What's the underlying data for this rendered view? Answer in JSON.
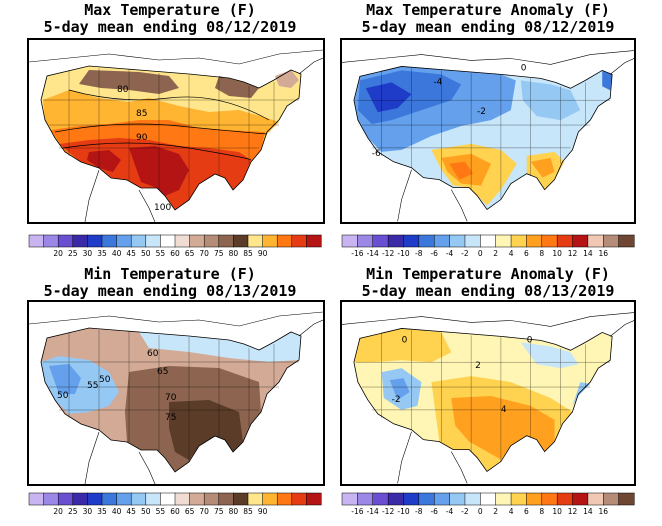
{
  "panels": [
    {
      "id": "max-temp",
      "title_line1": "Max Temperature (F)",
      "title_line2": "5-day mean ending 08/12/2019",
      "colorbar": {
        "colors": [
          "#c8b4f0",
          "#9b87e6",
          "#6a4fd2",
          "#3a2aa8",
          "#1e3cc8",
          "#3c78dc",
          "#64a0ec",
          "#96c8f4",
          "#c8e6fa",
          "#ffffff",
          "#f0dcd2",
          "#d2aa96",
          "#b48c78",
          "#8c6450",
          "#5a3c28",
          "#ffe68c",
          "#ffb432",
          "#ff7814",
          "#e63c14",
          "#b41414"
        ],
        "labels": [
          "20",
          "25",
          "30",
          "35",
          "40",
          "45",
          "50",
          "55",
          "60",
          "65",
          "70",
          "75",
          "80",
          "85",
          "90"
        ]
      },
      "map_labels": [
        "80",
        "85",
        "90",
        "100"
      ],
      "scale": "warm"
    },
    {
      "id": "max-temp-anomaly",
      "title_line1": "Max Temperature Anomaly (F)",
      "title_line2": "5-day mean ending 08/12/2019",
      "colorbar": {
        "colors": [
          "#c8b4f0",
          "#9b87e6",
          "#6a4fd2",
          "#3a2aa8",
          "#1e3cc8",
          "#3c78dc",
          "#64a0ec",
          "#96c8f4",
          "#c8e6fa",
          "#ffffff",
          "#fff5b4",
          "#ffd250",
          "#ffa01e",
          "#ff7814",
          "#e63c14",
          "#b41414",
          "#f0c8b4",
          "#b48c78",
          "#6e4632"
        ],
        "labels": [
          "-16",
          "-14",
          "-12",
          "-10",
          "-8",
          "-6",
          "-4",
          "-2",
          "0",
          "2",
          "4",
          "6",
          "8",
          "10",
          "12",
          "14",
          "16"
        ]
      },
      "map_labels": [
        "-4",
        "-2",
        "0",
        "-6"
      ],
      "scale": "anomaly-cool"
    },
    {
      "id": "min-temp",
      "title_line1": "Min Temperature (F)",
      "title_line2": "5-day mean ending 08/13/2019",
      "colorbar": {
        "colors": [
          "#c8b4f0",
          "#9b87e6",
          "#6a4fd2",
          "#3a2aa8",
          "#1e3cc8",
          "#3c78dc",
          "#64a0ec",
          "#96c8f4",
          "#c8e6fa",
          "#ffffff",
          "#f0dcd2",
          "#d2aa96",
          "#b48c78",
          "#8c6450",
          "#5a3c28",
          "#ffe68c",
          "#ffb432",
          "#ff7814",
          "#e63c14",
          "#b41414"
        ],
        "labels": [
          "20",
          "25",
          "30",
          "35",
          "40",
          "45",
          "50",
          "55",
          "60",
          "65",
          "70",
          "75",
          "80",
          "85",
          "90"
        ]
      },
      "map_labels": [
        "60",
        "65",
        "50",
        "55",
        "70",
        "75",
        "50"
      ],
      "scale": "min"
    },
    {
      "id": "min-temp-anomaly",
      "title_line1": "Min Temperature Anomaly (F)",
      "title_line2": "5-day mean ending 08/13/2019",
      "colorbar": {
        "colors": [
          "#c8b4f0",
          "#9b87e6",
          "#6a4fd2",
          "#3a2aa8",
          "#1e3cc8",
          "#3c78dc",
          "#64a0ec",
          "#96c8f4",
          "#c8e6fa",
          "#ffffff",
          "#fff5b4",
          "#ffd250",
          "#ffa01e",
          "#ff7814",
          "#e63c14",
          "#b41414",
          "#f0c8b4",
          "#b48c78",
          "#6e4632"
        ],
        "labels": [
          "-16",
          "-14",
          "-12",
          "-10",
          "-8",
          "-6",
          "-4",
          "-2",
          "0",
          "2",
          "4",
          "6",
          "8",
          "10",
          "12",
          "14",
          "16"
        ]
      },
      "map_labels": [
        "0",
        "2",
        "4",
        "-2",
        "0"
      ],
      "scale": "anomaly-warm"
    }
  ]
}
